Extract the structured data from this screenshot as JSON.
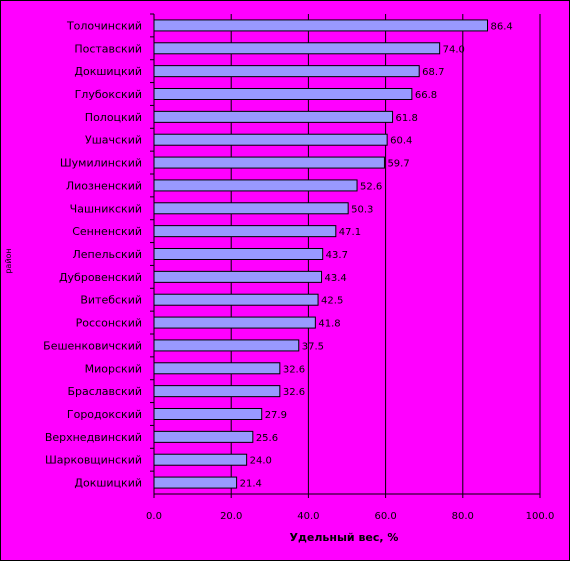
{
  "chart_data": {
    "type": "bar",
    "orientation": "horizontal",
    "title": "",
    "xlabel": "Удельный вес, %",
    "ylabel": "район",
    "xlim": [
      0,
      100
    ],
    "x_ticks": [
      "0.0",
      "20.0",
      "40.0",
      "60.0",
      "80.0",
      "100.0"
    ],
    "x_tick_values": [
      0,
      20,
      40,
      60,
      80,
      100
    ],
    "grid": "vertical",
    "legend": "none",
    "categories": [
      "Толочинский",
      "Поставский",
      "Докшицкий",
      "Глубокский",
      "Полоцкий",
      "Ушачский",
      "Шумилинский",
      "Лиозненский",
      "Чашникский",
      "Сенненский",
      "Лепельский",
      "Дубровенский",
      "Витебский",
      "Россонский",
      "Бешенковичский",
      "Миорский",
      "Браславский",
      "Городокский",
      "Верхнедвинский",
      "Шарковщинский",
      "Докшицкий"
    ],
    "values": [
      86.4,
      74.0,
      68.7,
      66.8,
      61.8,
      60.4,
      59.7,
      52.6,
      50.3,
      47.1,
      43.7,
      43.4,
      42.5,
      41.8,
      37.5,
      32.6,
      32.6,
      27.9,
      25.6,
      24.0,
      21.4
    ],
    "value_labels": [
      "86.4",
      "74.0",
      "68.7",
      "66.8",
      "61.8",
      "60.4",
      "59.7",
      "52.6",
      "50.3",
      "47.1",
      "43.7",
      "43.4",
      "42.5",
      "41.8",
      "37.5",
      "32.6",
      "32.6",
      "27.9",
      "25.6",
      "24.0",
      "21.4"
    ]
  },
  "colors": {
    "background": "#ff00ff",
    "plot_area": "#ff00ff",
    "bar_fill": "#9999ff",
    "bar_stroke": "#000000",
    "grid": "#000000",
    "axis": "#000000"
  }
}
